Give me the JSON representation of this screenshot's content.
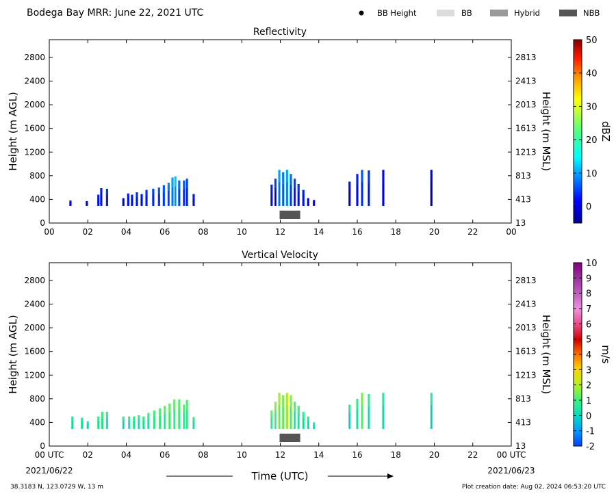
{
  "header": {
    "title": "Bodega Bay MRR:  June 22, 2021 UTC",
    "legend": [
      {
        "label": "BB Height",
        "kind": "dot",
        "color": "#000000"
      },
      {
        "label": "BB",
        "kind": "box",
        "color": "#dcdcdc"
      },
      {
        "label": "Hybrid",
        "kind": "box",
        "color": "#999999"
      },
      {
        "label": "NBB",
        "kind": "box",
        "color": "#555555"
      }
    ]
  },
  "footer": {
    "location": "38.3183 N, 123.0729 W, 13 m",
    "created": "Plot creation date: Aug 02, 2024 06:53:20 UTC",
    "start_date": "2021/06/22",
    "end_date": "2021/06/23",
    "xlabel": "Time (UTC)"
  },
  "chart_data": [
    {
      "type": "heatmap",
      "title": "Reflectivity",
      "xlabel": "Time (UTC)",
      "ylabel": "Height (m AGL)",
      "ylabel_right": "Height (m MSL)",
      "xlim": [
        0,
        24
      ],
      "ylim": [
        0,
        3100
      ],
      "x_ticks": [
        "00",
        "02",
        "04",
        "06",
        "08",
        "10",
        "12",
        "14",
        "16",
        "18",
        "20",
        "22",
        "00"
      ],
      "y_ticks": [
        "0",
        "400",
        "800",
        "1200",
        "1600",
        "2000",
        "2400",
        "2800"
      ],
      "y_ticks_right": [
        "13",
        "413",
        "813",
        "1213",
        "1613",
        "2013",
        "2413",
        "2813"
      ],
      "colorbar": {
        "label": "dBZ",
        "range": [
          -5,
          50
        ],
        "ticks": [
          "0",
          "10",
          "20",
          "30",
          "40",
          "50"
        ]
      },
      "nbb_periods": [
        {
          "start": 12.0,
          "end": 13.0
        }
      ],
      "columns": [
        {
          "t": 1.1,
          "top": 380,
          "v": 2
        },
        {
          "t": 1.95,
          "top": 370,
          "v": 2
        },
        {
          "t": 2.55,
          "top": 480,
          "v": 3
        },
        {
          "t": 2.7,
          "top": 590,
          "v": 3
        },
        {
          "t": 3.0,
          "top": 580,
          "v": 4
        },
        {
          "t": 3.85,
          "top": 420,
          "v": 2
        },
        {
          "t": 4.1,
          "top": 500,
          "v": 3
        },
        {
          "t": 4.3,
          "top": 480,
          "v": 3
        },
        {
          "t": 4.55,
          "top": 520,
          "v": 4
        },
        {
          "t": 4.8,
          "top": 490,
          "v": 3
        },
        {
          "t": 5.05,
          "top": 560,
          "v": 4
        },
        {
          "t": 5.4,
          "top": 580,
          "v": 5
        },
        {
          "t": 5.7,
          "top": 600,
          "v": 6
        },
        {
          "t": 5.95,
          "top": 640,
          "v": 6
        },
        {
          "t": 6.2,
          "top": 680,
          "v": 8
        },
        {
          "t": 6.4,
          "top": 770,
          "v": 10
        },
        {
          "t": 6.55,
          "top": 790,
          "v": 12
        },
        {
          "t": 6.75,
          "top": 720,
          "v": 7
        },
        {
          "t": 7.0,
          "top": 720,
          "v": 6
        },
        {
          "t": 7.15,
          "top": 750,
          "v": 5
        },
        {
          "t": 7.5,
          "top": 490,
          "v": 3
        },
        {
          "t": 11.55,
          "top": 650,
          "v": 3
        },
        {
          "t": 11.75,
          "top": 750,
          "v": 5
        },
        {
          "t": 11.95,
          "top": 900,
          "v": 10
        },
        {
          "t": 12.15,
          "top": 860,
          "v": 8
        },
        {
          "t": 12.35,
          "top": 900,
          "v": 10
        },
        {
          "t": 12.55,
          "top": 830,
          "v": 7
        },
        {
          "t": 12.75,
          "top": 750,
          "v": 5
        },
        {
          "t": 12.95,
          "top": 660,
          "v": 4
        },
        {
          "t": 13.2,
          "top": 560,
          "v": 3
        },
        {
          "t": 13.45,
          "top": 420,
          "v": 2
        },
        {
          "t": 13.75,
          "top": 390,
          "v": 2
        },
        {
          "t": 15.6,
          "top": 700,
          "v": 2
        },
        {
          "t": 16.0,
          "top": 830,
          "v": 3
        },
        {
          "t": 16.25,
          "top": 900,
          "v": 6
        },
        {
          "t": 16.6,
          "top": 890,
          "v": 4
        },
        {
          "t": 17.35,
          "top": 900,
          "v": 2
        },
        {
          "t": 19.85,
          "top": 900,
          "v": 1
        }
      ]
    },
    {
      "type": "heatmap",
      "title": "Vertical Velocity",
      "xlabel": "Time (UTC)",
      "ylabel": "Height (m AGL)",
      "ylabel_right": "Height (m MSL)",
      "xlim": [
        0,
        24
      ],
      "ylim": [
        0,
        3100
      ],
      "x_ticks": [
        "00 UTC",
        "02",
        "04",
        "06",
        "08",
        "10",
        "12",
        "14",
        "16",
        "18",
        "20",
        "22",
        "00 UTC"
      ],
      "y_ticks": [
        "0",
        "400",
        "800",
        "1200",
        "1600",
        "2000",
        "2400",
        "2800"
      ],
      "y_ticks_right": [
        "13",
        "413",
        "813",
        "1213",
        "1613",
        "2013",
        "2413",
        "2813"
      ],
      "colorbar": {
        "label": "m/s",
        "range": [
          -2,
          10
        ],
        "ticks": [
          "-2",
          "-1",
          "0",
          "1",
          "2",
          "3",
          "4",
          "5",
          "6",
          "7",
          "8",
          "9",
          "10"
        ]
      },
      "nbb_periods": [
        {
          "start": 12.0,
          "end": 13.0
        }
      ],
      "columns": [
        {
          "t": 1.2,
          "top": 500,
          "v": 0.6
        },
        {
          "t": 1.7,
          "top": 480,
          "v": 0.6
        },
        {
          "t": 2.0,
          "top": 420,
          "v": 0.6
        },
        {
          "t": 2.55,
          "top": 500,
          "v": 0.8
        },
        {
          "t": 2.75,
          "top": 580,
          "v": 0.9
        },
        {
          "t": 3.0,
          "top": 580,
          "v": 0.8
        },
        {
          "t": 3.85,
          "top": 500,
          "v": 0.7
        },
        {
          "t": 4.15,
          "top": 500,
          "v": 0.8
        },
        {
          "t": 4.4,
          "top": 500,
          "v": 0.8
        },
        {
          "t": 4.65,
          "top": 520,
          "v": 0.8
        },
        {
          "t": 4.9,
          "top": 500,
          "v": 0.8
        },
        {
          "t": 5.15,
          "top": 560,
          "v": 0.9
        },
        {
          "t": 5.45,
          "top": 600,
          "v": 1.0
        },
        {
          "t": 5.75,
          "top": 640,
          "v": 1.1
        },
        {
          "t": 6.0,
          "top": 680,
          "v": 1.2
        },
        {
          "t": 6.25,
          "top": 720,
          "v": 1.3
        },
        {
          "t": 6.5,
          "top": 790,
          "v": 1.3
        },
        {
          "t": 6.75,
          "top": 790,
          "v": 1.2
        },
        {
          "t": 7.0,
          "top": 700,
          "v": 1.1
        },
        {
          "t": 7.15,
          "top": 780,
          "v": 1.1
        },
        {
          "t": 7.5,
          "top": 490,
          "v": 0.8
        },
        {
          "t": 11.55,
          "top": 600,
          "v": 1.2
        },
        {
          "t": 11.75,
          "top": 750,
          "v": 1.6
        },
        {
          "t": 11.95,
          "top": 900,
          "v": 1.8
        },
        {
          "t": 12.15,
          "top": 860,
          "v": 1.5
        },
        {
          "t": 12.35,
          "top": 900,
          "v": 2.0
        },
        {
          "t": 12.55,
          "top": 860,
          "v": 1.6
        },
        {
          "t": 12.75,
          "top": 750,
          "v": 1.2
        },
        {
          "t": 12.95,
          "top": 680,
          "v": 1.0
        },
        {
          "t": 13.2,
          "top": 580,
          "v": 0.8
        },
        {
          "t": 13.45,
          "top": 500,
          "v": 0.7
        },
        {
          "t": 13.75,
          "top": 400,
          "v": 0.6
        },
        {
          "t": 15.6,
          "top": 700,
          "v": 0.6
        },
        {
          "t": 16.0,
          "top": 800,
          "v": 0.8
        },
        {
          "t": 16.25,
          "top": 900,
          "v": 1.5
        },
        {
          "t": 16.6,
          "top": 880,
          "v": 0.8
        },
        {
          "t": 17.35,
          "top": 900,
          "v": 0.6
        },
        {
          "t": 19.85,
          "top": 900,
          "v": 0.6
        }
      ]
    }
  ]
}
